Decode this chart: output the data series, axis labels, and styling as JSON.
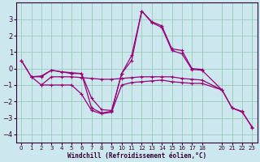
{
  "xlabel": "Windchill (Refroidissement éolien,°C)",
  "background_color": "#cce8ee",
  "grid_color": "#99ccbb",
  "line_color": "#990077",
  "xlim": [
    -0.5,
    23.5
  ],
  "ylim": [
    -4.5,
    4.0
  ],
  "xticks": [
    0,
    1,
    2,
    3,
    4,
    5,
    6,
    7,
    8,
    9,
    10,
    11,
    12,
    13,
    14,
    15,
    16,
    17,
    18,
    20,
    21,
    22,
    23
  ],
  "yticks": [
    -4,
    -3,
    -2,
    -1,
    0,
    1,
    2,
    3
  ],
  "s1_x": [
    0,
    1,
    2,
    3,
    4,
    5,
    6,
    7,
    8,
    9,
    10,
    11,
    12,
    13,
    14,
    15,
    16,
    17,
    18
  ],
  "s1_y": [
    0.5,
    -0.5,
    -0.45,
    -0.1,
    -0.2,
    -0.25,
    -0.3,
    -2.4,
    -2.7,
    -2.6,
    -0.3,
    0.8,
    3.5,
    2.85,
    2.6,
    1.2,
    1.1,
    0.0,
    -0.05
  ],
  "s2_x": [
    0,
    1,
    2,
    3,
    4,
    5,
    6,
    7,
    8,
    9,
    10,
    11,
    12,
    13,
    14,
    15,
    16,
    17,
    18,
    20,
    21,
    22,
    23
  ],
  "s2_y": [
    0.5,
    -0.5,
    -0.5,
    -0.1,
    -0.2,
    -0.3,
    -0.3,
    -1.8,
    -2.5,
    -2.55,
    -0.3,
    0.5,
    3.5,
    2.8,
    2.5,
    1.1,
    0.9,
    -0.05,
    -0.1,
    -1.3,
    -2.4,
    -2.6,
    -3.6
  ],
  "s3_x": [
    1,
    2,
    3,
    4,
    5,
    6,
    7,
    8,
    9,
    10,
    11,
    12,
    13,
    14,
    15,
    16,
    17,
    18,
    20,
    21,
    22,
    23
  ],
  "s3_y": [
    -0.5,
    -1.0,
    -0.5,
    -0.5,
    -0.5,
    -0.55,
    -0.6,
    -0.65,
    -0.65,
    -0.6,
    -0.55,
    -0.5,
    -0.5,
    -0.5,
    -0.5,
    -0.6,
    -0.65,
    -0.7,
    -1.3,
    -2.4,
    -2.65,
    -3.55
  ],
  "s4_x": [
    2,
    3,
    4,
    5,
    6,
    7,
    8,
    9,
    10,
    11,
    12,
    13,
    14,
    15,
    16,
    17,
    18,
    20
  ],
  "s4_y": [
    -1.0,
    -1.0,
    -1.0,
    -1.0,
    -1.55,
    -2.55,
    -2.75,
    -2.65,
    -1.0,
    -0.85,
    -0.8,
    -0.75,
    -0.7,
    -0.8,
    -0.85,
    -0.9,
    -0.9,
    -1.3
  ]
}
